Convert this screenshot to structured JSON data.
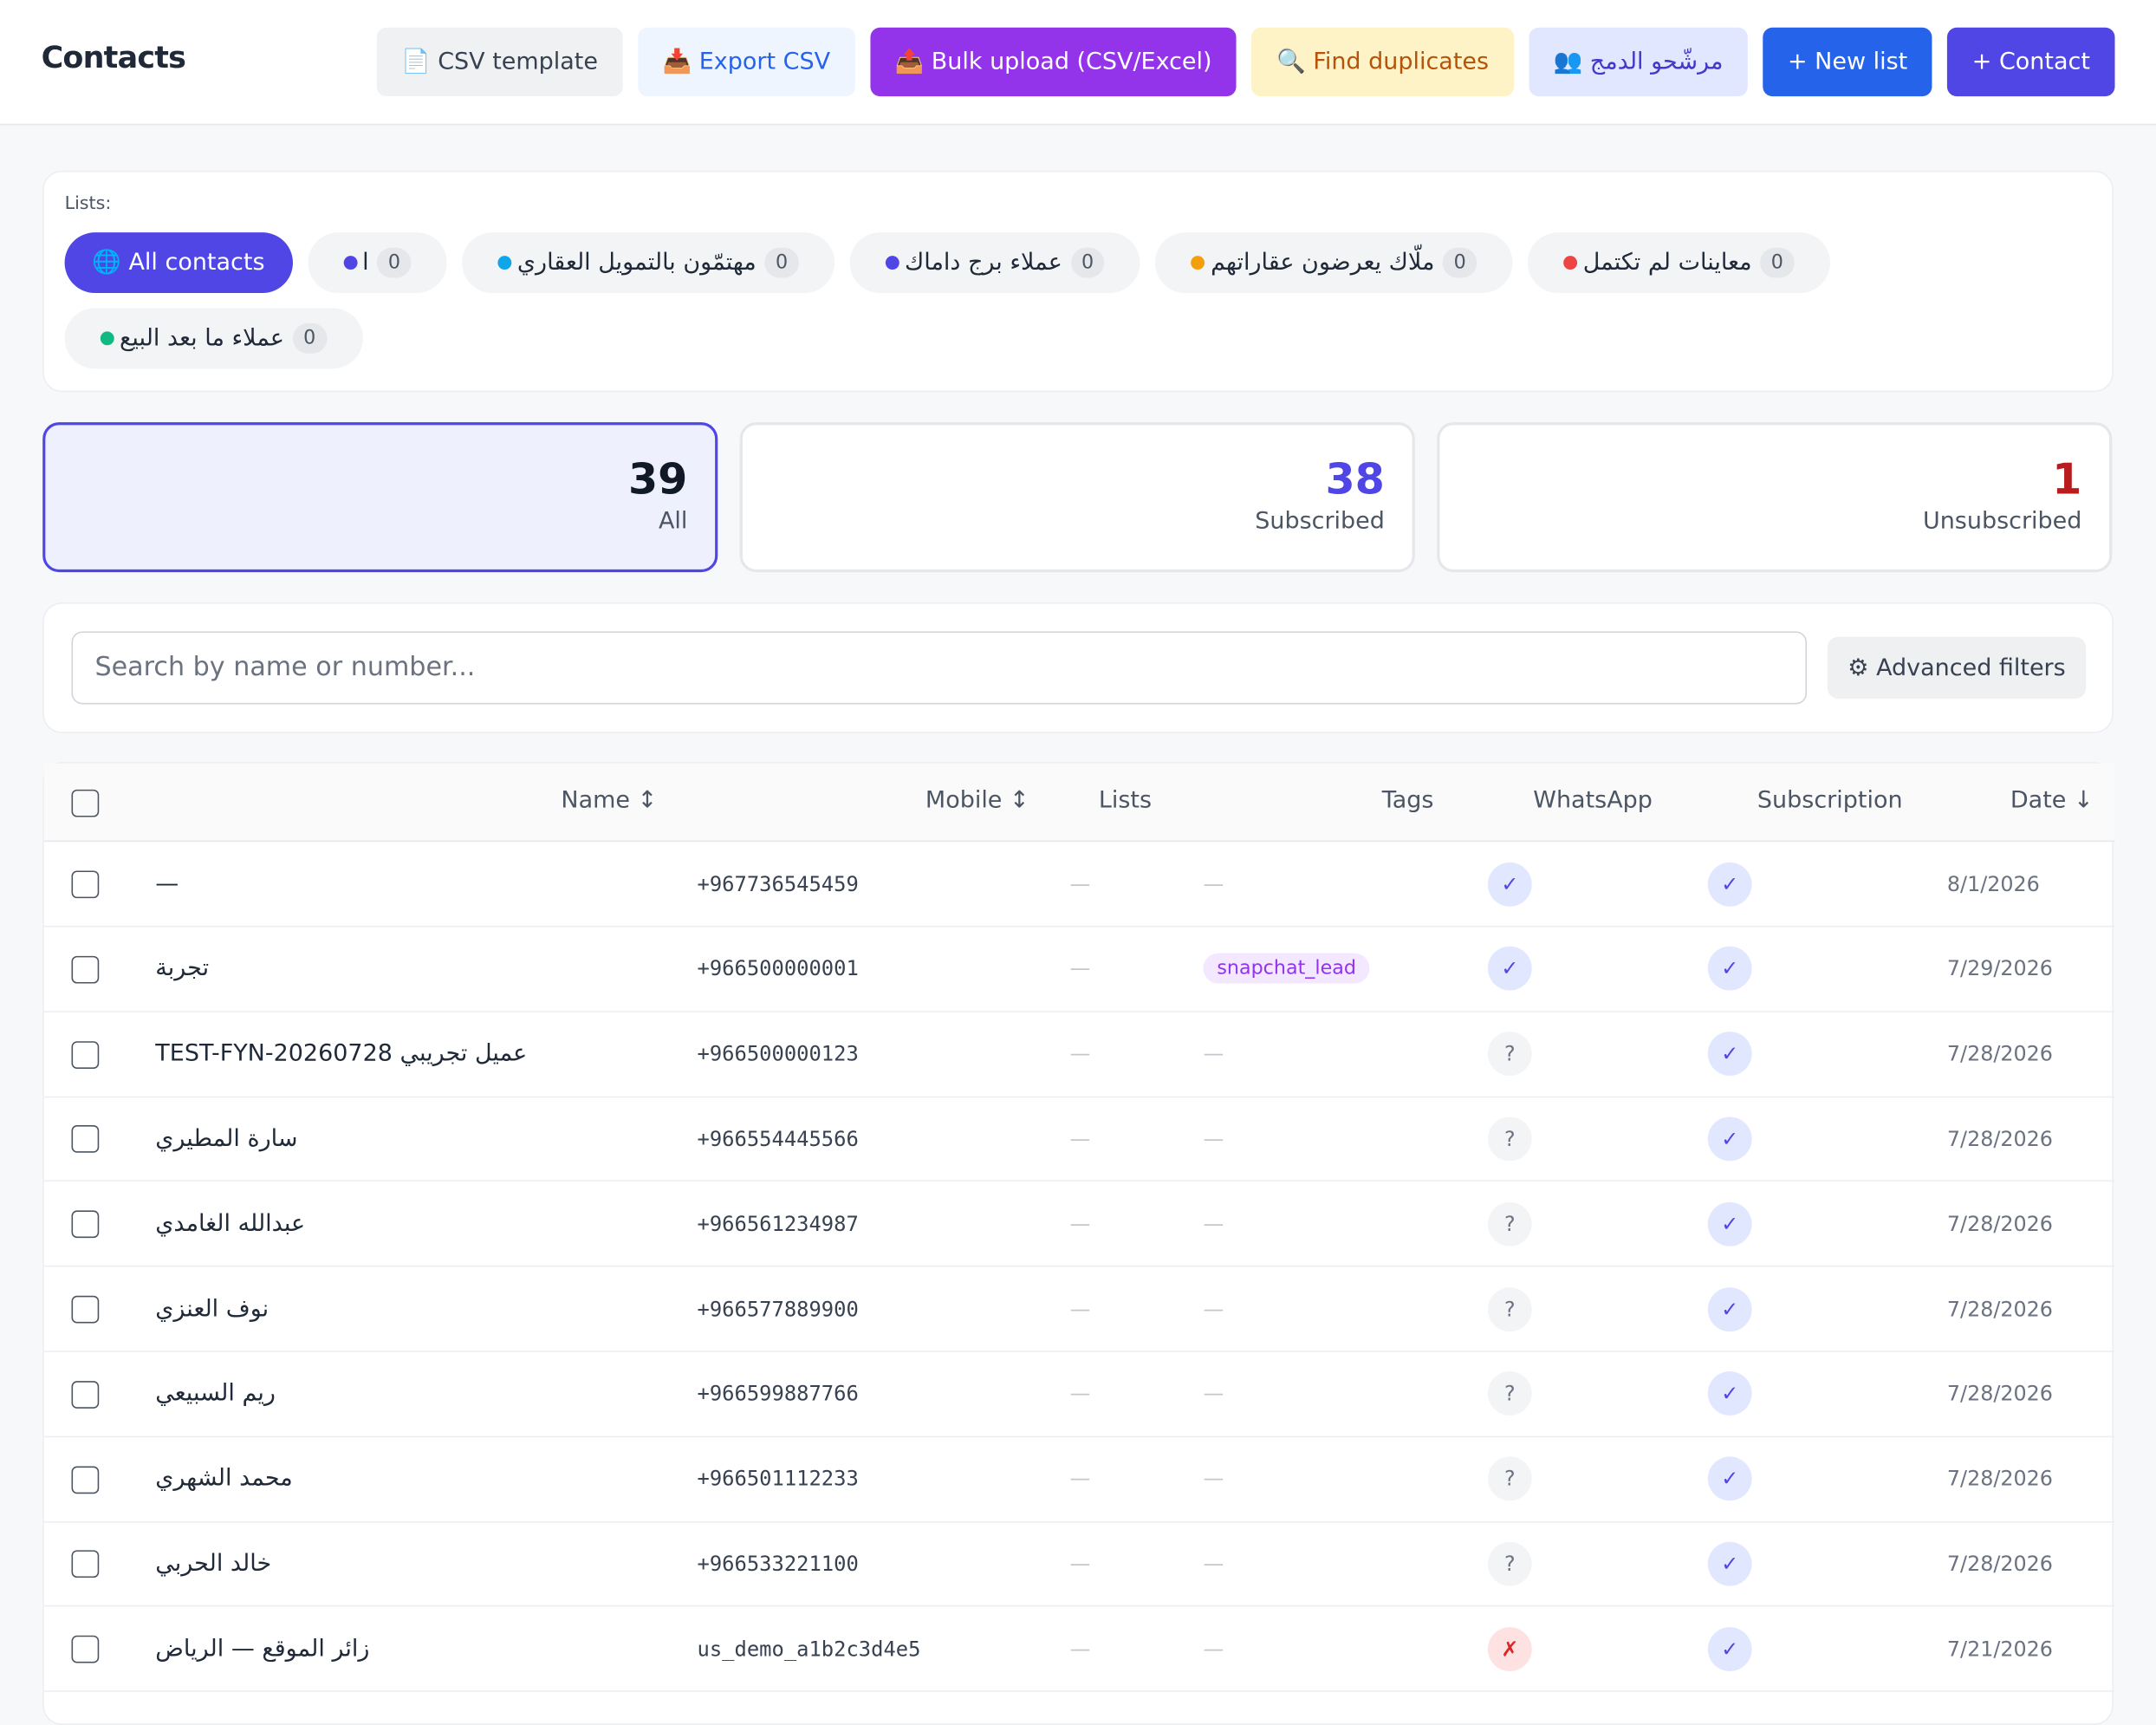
{
  "header": {
    "title": "Contacts",
    "buttons": [
      {
        "label": "📄 CSV template",
        "bg": "#f0f1f3",
        "fg": "#374151"
      },
      {
        "label": "📥 Export CSV",
        "bg": "#eef5ff",
        "fg": "#2563eb"
      },
      {
        "label": "📤 Bulk upload (CSV/Excel)",
        "bg": "#9333ea",
        "fg": "#ffffff"
      },
      {
        "label": "🔍 Find duplicates",
        "bg": "#fef3c7",
        "fg": "#b45309"
      },
      {
        "label": "👥 مرشّحو الدمج",
        "bg": "#e0e7ff",
        "fg": "#4338ca"
      },
      {
        "label": "+ New list",
        "bg": "#2563eb",
        "fg": "#ffffff"
      },
      {
        "label": "+ Contact",
        "bg": "#4f46e5",
        "fg": "#ffffff"
      }
    ]
  },
  "lists": {
    "label": "Lists:",
    "all": "🌐 All contacts",
    "items": [
      {
        "name": "ا",
        "count": "0",
        "color": "#4f46e5"
      },
      {
        "name": "مهتمّون بالتمويل العقاري",
        "count": "0",
        "color": "#0ea5e9"
      },
      {
        "name": "عملاء برج داماك",
        "count": "0",
        "color": "#4f46e5"
      },
      {
        "name": "ملّاك يعرضون عقاراتهم",
        "count": "0",
        "color": "#f59e0b"
      },
      {
        "name": "معاينات لم تكتمل",
        "count": "0",
        "color": "#ef4444"
      },
      {
        "name": "عملاء ما بعد البيع",
        "count": "0",
        "color": "#10b981"
      }
    ]
  },
  "stats": [
    {
      "value": "39",
      "label": "All",
      "color": "#111827"
    },
    {
      "value": "38",
      "label": "Subscribed",
      "color": "#4f46e5"
    },
    {
      "value": "1",
      "label": "Unsubscribed",
      "color": "#b91c1c"
    }
  ],
  "search": {
    "placeholder": "Search by name or number...",
    "filters": "⚙ Advanced filters"
  },
  "table": {
    "headers": [
      "Name ↕",
      "Mobile ↕",
      "Lists",
      "Tags",
      "WhatsApp",
      "Subscription",
      "Date ↓"
    ],
    "rows": [
      {
        "name": "—",
        "mobile": "+967736545459",
        "lists": "—",
        "tags": "—",
        "whatsapp": "✓",
        "subscription": "✓",
        "date": "8/1/2026"
      },
      {
        "name": "تجربة",
        "mobile": "+966500000001",
        "lists": "—",
        "tags": "snapchat_lead",
        "whatsapp": "✓",
        "subscription": "✓",
        "date": "7/29/2026"
      },
      {
        "name": "TEST-FYN-20260728 عميل تجريبي",
        "mobile": "+966500000123",
        "lists": "—",
        "tags": "—",
        "whatsapp": "?",
        "subscription": "✓",
        "date": "7/28/2026"
      },
      {
        "name": "سارة المطيري",
        "mobile": "+966554445566",
        "lists": "—",
        "tags": "—",
        "whatsapp": "?",
        "subscription": "✓",
        "date": "7/28/2026"
      },
      {
        "name": "عبدالله الغامدي",
        "mobile": "+966561234987",
        "lists": "—",
        "tags": "—",
        "whatsapp": "?",
        "subscription": "✓",
        "date": "7/28/2026"
      },
      {
        "name": "نوف العنزي",
        "mobile": "+966577889900",
        "lists": "—",
        "tags": "—",
        "whatsapp": "?",
        "subscription": "✓",
        "date": "7/28/2026"
      },
      {
        "name": "ريم السبيعي",
        "mobile": "+966599887766",
        "lists": "—",
        "tags": "—",
        "whatsapp": "?",
        "subscription": "✓",
        "date": "7/28/2026"
      },
      {
        "name": "محمد الشهري",
        "mobile": "+966501112233",
        "lists": "—",
        "tags": "—",
        "whatsapp": "?",
        "subscription": "✓",
        "date": "7/28/2026"
      },
      {
        "name": "خالد الحربي",
        "mobile": "+966533221100",
        "lists": "—",
        "tags": "—",
        "whatsapp": "?",
        "subscription": "✓",
        "date": "7/28/2026"
      },
      {
        "name": "زائر الموقع — الرياض",
        "mobile": "us_demo_a1b2c3d4e5",
        "lists": "—",
        "tags": "—",
        "whatsapp": "✗",
        "subscription": "✓",
        "date": "7/21/2026"
      }
    ]
  }
}
